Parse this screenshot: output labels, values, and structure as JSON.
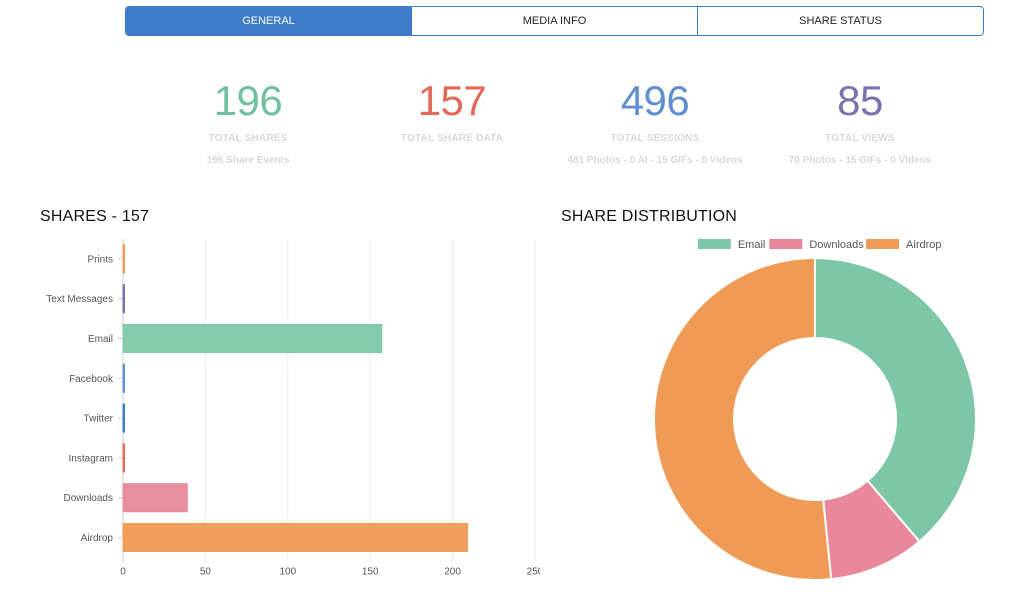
{
  "tabs": [
    {
      "label": "GENERAL",
      "active": true
    },
    {
      "label": "MEDIA INFO",
      "active": false
    },
    {
      "label": "SHARE STATUS",
      "active": false
    }
  ],
  "stats": [
    {
      "value": "196",
      "label": "TOTAL SHARES",
      "sub": "196 Share Events",
      "color": "#6fbfa0"
    },
    {
      "value": "157",
      "label": "TOTAL SHARE DATA",
      "sub": "",
      "color": "#e06b5b"
    },
    {
      "value": "496",
      "label": "TOTAL SESSIONS",
      "sub": "481 Photos - 0 AI - 15 GIFs - 0 Videos",
      "color": "#5f8fcf"
    },
    {
      "value": "85",
      "label": "TOTAL VIEWS",
      "sub": "70 Photos - 15 GIFs - 0 Videos",
      "color": "#7a73b0"
    }
  ],
  "bar_title": "SHARES - 157",
  "pie_title": "SHARE DISTRIBUTION",
  "chart_data": [
    {
      "type": "bar",
      "orientation": "horizontal",
      "categories": [
        "Prints",
        "Text Messages",
        "Email",
        "Facebook",
        "Twitter",
        "Instagram",
        "Downloads",
        "Airdrop"
      ],
      "values": [
        0,
        0,
        157,
        0,
        0,
        0,
        39,
        209
      ],
      "colors": [
        "#ef9a55",
        "#7a73b0",
        "#7dc7a8",
        "#5f8fcf",
        "#3d7cc9",
        "#e06b5b",
        "#e8889a",
        "#ef9a55"
      ],
      "xlim": [
        0,
        250
      ],
      "xticks": [
        0,
        50,
        100,
        150,
        200,
        250
      ],
      "grid": true
    },
    {
      "type": "pie",
      "donut": true,
      "labels": [
        "Email",
        "Downloads",
        "Airdrop"
      ],
      "values": [
        157,
        39,
        209
      ],
      "colors": [
        "#7dc7a8",
        "#e8889a",
        "#ef9a55"
      ],
      "legend": "top"
    }
  ]
}
